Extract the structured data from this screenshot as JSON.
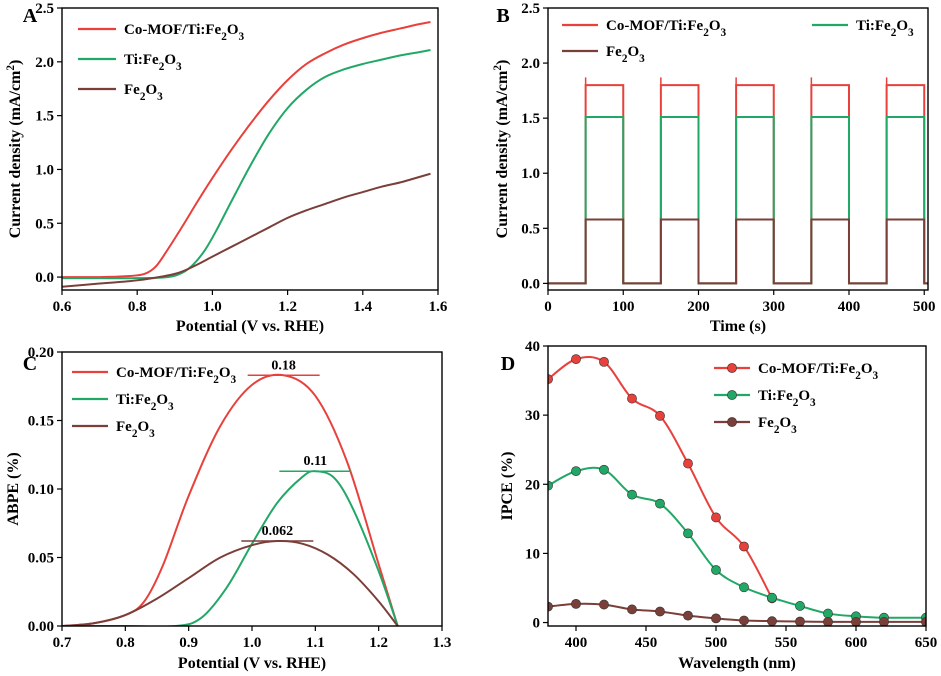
{
  "colors": {
    "red": "#e8413c",
    "green": "#22a866",
    "brown": "#7b3f3a",
    "axis": "#000000"
  },
  "chart_data": [
    {
      "panel": "A",
      "type": "line",
      "xlabel": "Potential (V vs. RHE)",
      "ylabel": "Current density (mA/cm²)",
      "xlim": [
        0.6,
        1.6
      ],
      "ylim": [
        -0.12,
        2.5
      ],
      "xticks": [
        "0.6",
        "0.8",
        "1.0",
        "1.2",
        "1.4",
        "1.6"
      ],
      "yticks": [
        "0.0",
        "0.5",
        "1.0",
        "1.5",
        "2.0",
        "2.5"
      ],
      "xtick_values": [
        0.6,
        0.8,
        1.0,
        1.2,
        1.4,
        1.6
      ],
      "ytick_values": [
        0.0,
        0.5,
        1.0,
        1.5,
        2.0,
        2.5
      ],
      "legend": [
        "Co-MOF/Ti:Fe₂O₃",
        "Ti:Fe₂O₃",
        "Fe₂O₃"
      ],
      "series": [
        {
          "name": "Co-MOF/Ti:Fe₂O₃",
          "color": "red",
          "x": [
            0.6,
            0.7,
            0.78,
            0.82,
            0.85,
            0.88,
            0.92,
            0.96,
            1.0,
            1.05,
            1.1,
            1.15,
            1.2,
            1.25,
            1.3,
            1.35,
            1.4,
            1.45,
            1.5,
            1.55,
            1.58
          ],
          "y": [
            0.0,
            0.0,
            0.01,
            0.03,
            0.1,
            0.25,
            0.47,
            0.7,
            0.92,
            1.18,
            1.42,
            1.64,
            1.83,
            1.98,
            2.08,
            2.16,
            2.22,
            2.27,
            2.31,
            2.35,
            2.37
          ]
        },
        {
          "name": "Ti:Fe₂O₃",
          "color": "green",
          "x": [
            0.6,
            0.7,
            0.8,
            0.88,
            0.92,
            0.95,
            0.98,
            1.01,
            1.05,
            1.1,
            1.15,
            1.2,
            1.25,
            1.3,
            1.35,
            1.4,
            1.45,
            1.5,
            1.55,
            1.58
          ],
          "y": [
            -0.01,
            -0.01,
            -0.01,
            0.0,
            0.04,
            0.12,
            0.25,
            0.43,
            0.7,
            1.03,
            1.33,
            1.57,
            1.74,
            1.86,
            1.93,
            1.98,
            2.02,
            2.06,
            2.09,
            2.11
          ]
        },
        {
          "name": "Fe₂O₃",
          "color": "brown",
          "x": [
            0.6,
            0.7,
            0.8,
            0.9,
            0.95,
            1.0,
            1.05,
            1.1,
            1.15,
            1.2,
            1.25,
            1.3,
            1.35,
            1.4,
            1.45,
            1.5,
            1.55,
            1.58
          ],
          "y": [
            -0.09,
            -0.06,
            -0.03,
            0.03,
            0.1,
            0.19,
            0.28,
            0.37,
            0.46,
            0.55,
            0.62,
            0.68,
            0.74,
            0.79,
            0.84,
            0.88,
            0.93,
            0.96
          ]
        }
      ]
    },
    {
      "panel": "B",
      "type": "line",
      "xlabel": "Time (s)",
      "ylabel": "Current density (mA/cm²)",
      "xlim": [
        0,
        505
      ],
      "ylim": [
        -0.06,
        2.5
      ],
      "xticks": [
        "0",
        "100",
        "200",
        "300",
        "400",
        "500"
      ],
      "yticks": [
        "0.0",
        "0.5",
        "1.0",
        "1.5",
        "2.0",
        "2.5"
      ],
      "xtick_values": [
        0,
        100,
        200,
        300,
        400,
        500
      ],
      "ytick_values": [
        0.0,
        0.5,
        1.0,
        1.5,
        2.0,
        2.5
      ],
      "legend": [
        "Co-MOF/Ti:Fe₂O₃",
        "Ti:Fe₂O₃",
        "Fe₂O₃"
      ],
      "light_on_periods": [
        [
          50,
          100
        ],
        [
          150,
          200
        ],
        [
          250,
          300
        ],
        [
          350,
          400
        ],
        [
          450,
          500
        ]
      ],
      "series": [
        {
          "name": "Co-MOF/Ti:Fe₂O₃",
          "color": "red",
          "on_value": 1.8,
          "off_value": 0.0
        },
        {
          "name": "Ti:Fe₂O₃",
          "color": "green",
          "on_value": 1.51,
          "off_value": 0.0
        },
        {
          "name": "Fe₂O₃",
          "color": "brown",
          "on_value": 0.58,
          "off_value": 0.0
        }
      ]
    },
    {
      "panel": "C",
      "type": "line",
      "xlabel": "Potential (V vs. RHE)",
      "ylabel": "ABPE (%)",
      "xlim": [
        0.7,
        1.3
      ],
      "ylim": [
        0.0,
        0.2
      ],
      "xticks": [
        "0.7",
        "0.8",
        "0.9",
        "1.0",
        "1.1",
        "1.2",
        "1.3"
      ],
      "yticks": [
        "0.00",
        "0.05",
        "0.10",
        "0.15",
        "0.20"
      ],
      "xtick_values": [
        0.7,
        0.8,
        0.9,
        1.0,
        1.1,
        1.2,
        1.3
      ],
      "ytick_values": [
        0.0,
        0.05,
        0.1,
        0.15,
        0.2
      ],
      "legend": [
        "Co-MOF/Ti:Fe₂O₃",
        "Ti:Fe₂O₃",
        "Fe₂O₃"
      ],
      "annotations": [
        {
          "text": "0.18",
          "x": 1.05,
          "y": 0.183
        },
        {
          "text": "0.11",
          "x": 1.1,
          "y": 0.113
        },
        {
          "text": "0.062",
          "x": 1.04,
          "y": 0.062
        }
      ],
      "series": [
        {
          "name": "Co-MOF/Ti:Fe₂O₃",
          "color": "red",
          "x": [
            0.7,
            0.75,
            0.8,
            0.83,
            0.86,
            0.9,
            0.95,
            1.0,
            1.05,
            1.1,
            1.15,
            1.2,
            1.23
          ],
          "y": [
            0.0,
            0.002,
            0.008,
            0.018,
            0.045,
            0.095,
            0.146,
            0.176,
            0.183,
            0.168,
            0.12,
            0.045,
            0.0
          ]
        },
        {
          "name": "Ti:Fe₂O₃",
          "color": "green",
          "x": [
            0.7,
            0.8,
            0.88,
            0.92,
            0.96,
            1.0,
            1.04,
            1.08,
            1.1,
            1.13,
            1.16,
            1.2,
            1.23
          ],
          "y": [
            0.0,
            0.0,
            0.0,
            0.006,
            0.028,
            0.06,
            0.09,
            0.109,
            0.113,
            0.108,
            0.085,
            0.04,
            0.0
          ]
        },
        {
          "name": "Fe₂O₃",
          "color": "brown",
          "x": [
            0.7,
            0.75,
            0.8,
            0.85,
            0.9,
            0.95,
            1.0,
            1.04,
            1.08,
            1.12,
            1.16,
            1.2,
            1.23
          ],
          "y": [
            0.0,
            0.002,
            0.008,
            0.02,
            0.035,
            0.05,
            0.059,
            0.062,
            0.06,
            0.052,
            0.038,
            0.018,
            0.0
          ]
        }
      ]
    },
    {
      "panel": "D",
      "type": "line",
      "xlabel": "Wavelength (nm)",
      "ylabel": "IPCE (%)",
      "xlim": [
        380,
        650
      ],
      "ylim": [
        -0.5,
        40
      ],
      "xticks": [
        "400",
        "450",
        "500",
        "550",
        "600",
        "650"
      ],
      "yticks": [
        "0",
        "10",
        "20",
        "30",
        "40"
      ],
      "xtick_values": [
        400,
        450,
        500,
        550,
        600,
        650
      ],
      "ytick_values": [
        0,
        10,
        20,
        30,
        40
      ],
      "legend": [
        "Co-MOF/Ti:Fe₂O₃",
        "Ti:Fe₂O₃",
        "Fe₂O₃"
      ],
      "series": [
        {
          "name": "Co-MOF/Ti:Fe₂O₃",
          "color": "red",
          "x": [
            380,
            400,
            420,
            440,
            460,
            480,
            500,
            520,
            540
          ],
          "y": [
            35.2,
            38.1,
            37.7,
            32.4,
            29.9,
            23.0,
            15.2,
            11.0,
            3.5
          ]
        },
        {
          "name": "Ti:Fe₂O₃",
          "color": "green",
          "x": [
            380,
            400,
            420,
            440,
            460,
            480,
            500,
            520,
            540,
            560,
            580,
            600,
            620,
            650
          ],
          "y": [
            19.8,
            21.9,
            22.1,
            18.5,
            17.2,
            12.9,
            7.6,
            5.1,
            3.6,
            2.4,
            1.3,
            0.9,
            0.7,
            0.7
          ]
        },
        {
          "name": "Fe₂O₃",
          "color": "brown",
          "x": [
            380,
            400,
            420,
            440,
            460,
            480,
            500,
            520,
            540,
            560,
            580,
            600,
            620,
            650
          ],
          "y": [
            2.3,
            2.7,
            2.6,
            1.9,
            1.6,
            1.0,
            0.6,
            0.3,
            0.2,
            0.15,
            0.1,
            0.1,
            0.1,
            0.1
          ]
        }
      ]
    }
  ]
}
